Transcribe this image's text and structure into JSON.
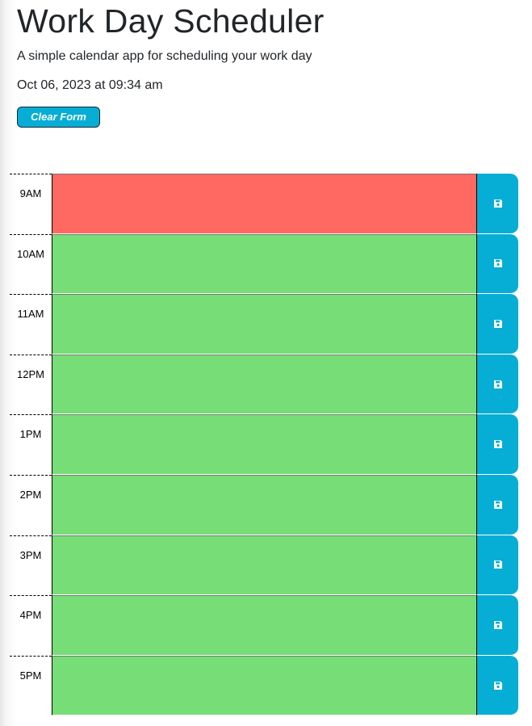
{
  "header": {
    "title": "Work Day Scheduler",
    "subtitle": "A simple calendar app for scheduling your work day",
    "current_day": "Oct 06, 2023 at 09:34 am",
    "clear_label": "Clear Form"
  },
  "colors": {
    "present": "#ff6961",
    "future": "#77dd77",
    "save_button": "#06aed5"
  },
  "time_blocks": [
    {
      "hour": "9AM",
      "status": "present",
      "text": "",
      "save_icon": "save-icon"
    },
    {
      "hour": "10AM",
      "status": "future",
      "text": "",
      "save_icon": "save-icon"
    },
    {
      "hour": "11AM",
      "status": "future",
      "text": "",
      "save_icon": "save-icon"
    },
    {
      "hour": "12PM",
      "status": "future",
      "text": "",
      "save_icon": "save-icon"
    },
    {
      "hour": "1PM",
      "status": "future",
      "text": "",
      "save_icon": "save-icon"
    },
    {
      "hour": "2PM",
      "status": "future",
      "text": "",
      "save_icon": "save-icon"
    },
    {
      "hour": "3PM",
      "status": "future",
      "text": "",
      "save_icon": "save-icon"
    },
    {
      "hour": "4PM",
      "status": "future",
      "text": "",
      "save_icon": "save-icon"
    },
    {
      "hour": "5PM",
      "status": "future",
      "text": "",
      "save_icon": "save-icon"
    }
  ]
}
